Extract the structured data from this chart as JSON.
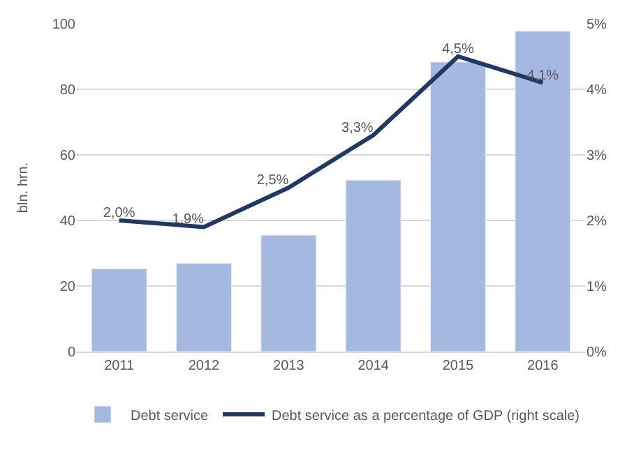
{
  "chart_data": {
    "type": "bar",
    "categories": [
      "2011",
      "2012",
      "2013",
      "2014",
      "2015",
      "2016"
    ],
    "ylabel": "bln. hrn.",
    "ylim": [
      0,
      100
    ],
    "yticks": [
      0,
      20,
      40,
      60,
      80,
      100
    ],
    "y2lim": [
      0,
      5
    ],
    "y2ticks": [
      {
        "value": 0,
        "label": "0%"
      },
      {
        "value": 1,
        "label": "1%"
      },
      {
        "value": 2,
        "label": "2%"
      },
      {
        "value": 3,
        "label": "3%"
      },
      {
        "value": 4,
        "label": "4%"
      },
      {
        "value": 5,
        "label": "5%"
      }
    ],
    "series": [
      {
        "name": "Debt service",
        "color": "#a4b8e0",
        "values": [
          25.2,
          26.9,
          35.5,
          52.3,
          88.3,
          97.7
        ]
      },
      {
        "name": "Debt service as a percentage of GDP (right scale)",
        "type": "line",
        "axis": "y2",
        "color": "#1f3864",
        "values": [
          2.0,
          1.9,
          2.5,
          3.3,
          4.5,
          4.1
        ],
        "value_labels": [
          "2,0%",
          "1,9%",
          "2,5%",
          "3,3%",
          "4,5%",
          "4,1%"
        ]
      }
    ],
    "grid": "y",
    "legend": "bottom",
    "marker": "none"
  }
}
